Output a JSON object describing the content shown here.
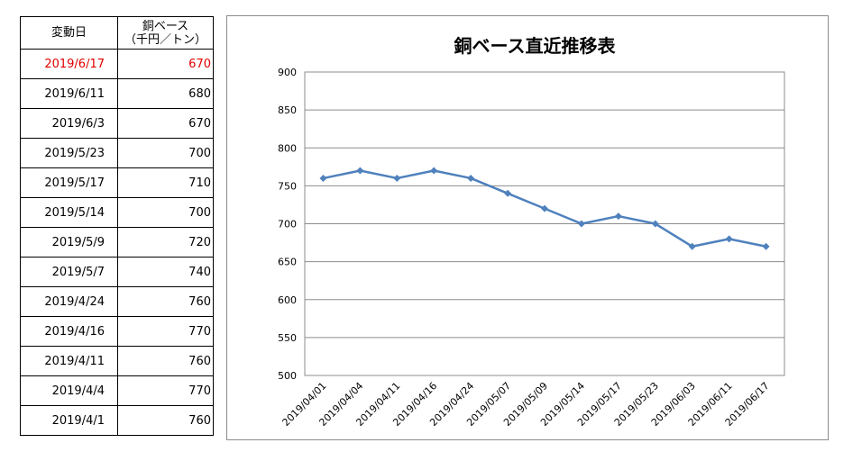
{
  "table": {
    "header_date": "変動日",
    "header_price_line1": "銅ベース",
    "header_price_line2": "（千円／トン）",
    "highlight_color": "#e00000",
    "rows": [
      {
        "date": "2019/6/17",
        "price": "670"
      },
      {
        "date": "2019/6/11",
        "price": "680"
      },
      {
        "date": "2019/6/3",
        "price": "670"
      },
      {
        "date": "2019/5/23",
        "price": "700"
      },
      {
        "date": "2019/5/17",
        "price": "710"
      },
      {
        "date": "2019/5/14",
        "price": "700"
      },
      {
        "date": "2019/5/9",
        "price": "720"
      },
      {
        "date": "2019/5/7",
        "price": "740"
      },
      {
        "date": "2019/4/24",
        "price": "760"
      },
      {
        "date": "2019/4/16",
        "price": "770"
      },
      {
        "date": "2019/4/11",
        "price": "760"
      },
      {
        "date": "2019/4/4",
        "price": "770"
      },
      {
        "date": "2019/4/1",
        "price": "760"
      }
    ]
  },
  "chart_data": {
    "type": "line",
    "title": "銅ベース直近推移表",
    "xlabel": "",
    "ylabel": "",
    "categories": [
      "2019/04/01",
      "2019/04/04",
      "2019/04/11",
      "2019/04/16",
      "2019/04/24",
      "2019/05/07",
      "2019/05/09",
      "2019/05/14",
      "2019/05/17",
      "2019/05/23",
      "2019/06/03",
      "2019/06/11",
      "2019/06/17"
    ],
    "series": [
      {
        "values": [
          760,
          770,
          760,
          770,
          760,
          740,
          720,
          700,
          710,
          700,
          670,
          680,
          670
        ],
        "color": "#4f81bd"
      }
    ],
    "ylim": [
      500,
      900
    ],
    "yticks": [
      500,
      550,
      600,
      650,
      700,
      750,
      800,
      850,
      900
    ],
    "grid": true,
    "legend": "none"
  }
}
